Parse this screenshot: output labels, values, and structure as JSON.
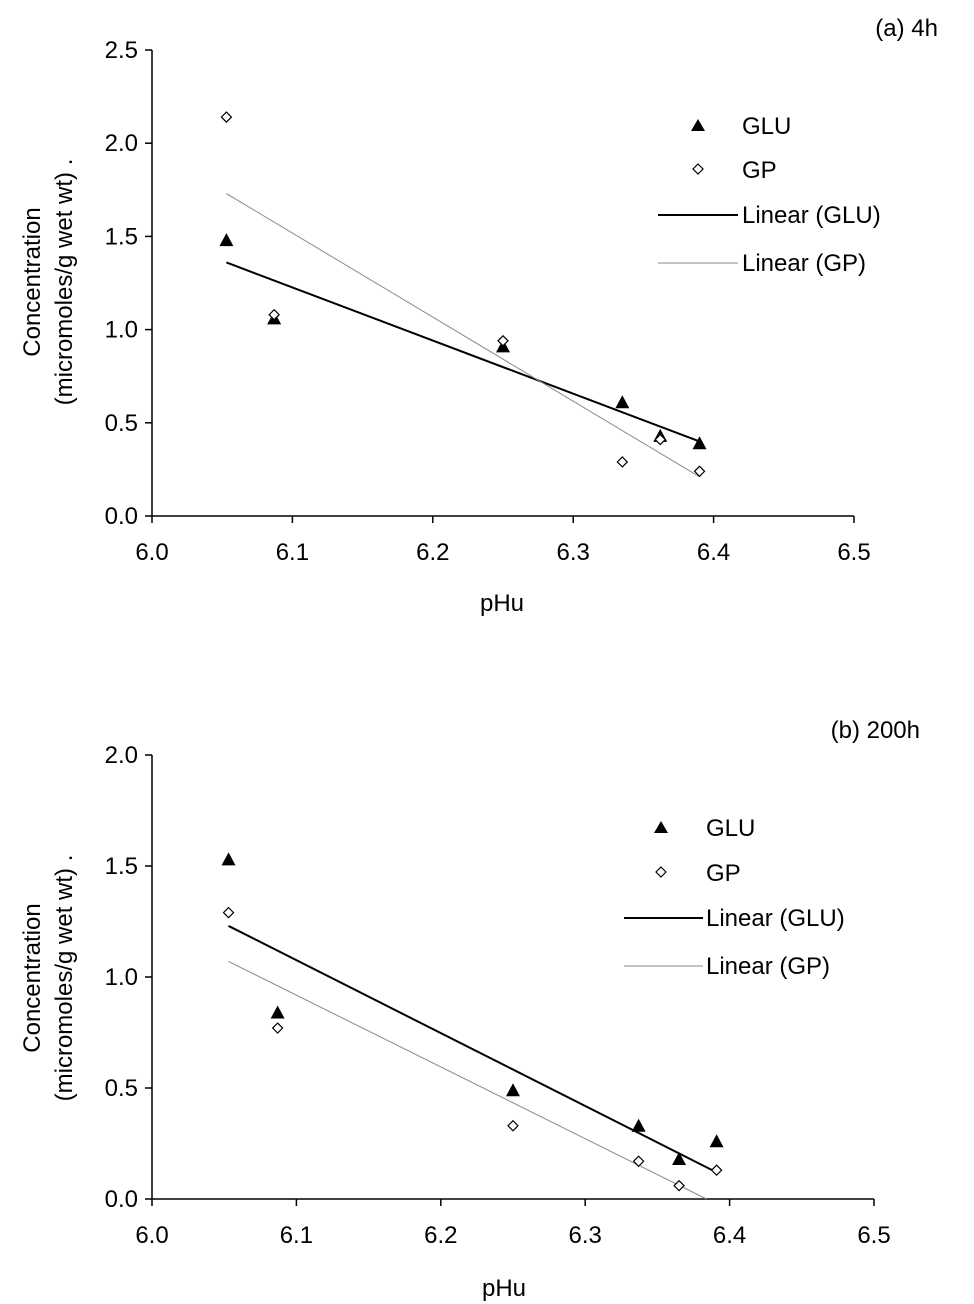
{
  "colors": {
    "axis": "#000000",
    "glu_marker": "#000000",
    "gp_marker": "#000000",
    "glu_line": "#000000",
    "gp_line": "#8a8a8a",
    "background": "#ffffff"
  },
  "chart_data": [
    {
      "type": "scatter",
      "panel_label": "(a) 4h",
      "xlabel": "pHu",
      "ylabel_line1": "Concentration",
      "ylabel_line2": "(micromoles/g wet wt) .",
      "xlim": [
        6.0,
        6.5
      ],
      "ylim": [
        0.0,
        2.5
      ],
      "x_ticks": [
        6.0,
        6.1,
        6.2,
        6.3,
        6.4,
        6.5
      ],
      "x_tick_labels": [
        "6.0",
        "6.1",
        "6.2",
        "6.3",
        "6.4",
        "6.5"
      ],
      "y_ticks": [
        0.0,
        0.5,
        1.0,
        1.5,
        2.0,
        2.5
      ],
      "y_tick_labels": [
        "0.0",
        "0.5",
        "1.0",
        "1.5",
        "2.0",
        "2.5"
      ],
      "grid": false,
      "legend_position": "top-right",
      "series": [
        {
          "name": "GLU",
          "marker": "filled-triangle",
          "x": [
            6.053,
            6.087,
            6.25,
            6.335,
            6.362,
            6.39
          ],
          "y": [
            1.48,
            1.06,
            0.91,
            0.61,
            0.43,
            0.39
          ]
        },
        {
          "name": "GP",
          "marker": "open-diamond",
          "x": [
            6.053,
            6.087,
            6.25,
            6.335,
            6.362,
            6.39
          ],
          "y": [
            2.14,
            1.08,
            0.94,
            0.29,
            0.41,
            0.24
          ]
        }
      ],
      "trendlines": [
        {
          "name": "Linear (GLU)",
          "x": [
            6.053,
            6.39
          ],
          "y": [
            1.36,
            0.4
          ]
        },
        {
          "name": "Linear (GP)",
          "x": [
            6.053,
            6.39
          ],
          "y": [
            1.73,
            0.21
          ]
        }
      ]
    },
    {
      "type": "scatter",
      "panel_label": "(b)  200h",
      "xlabel": "pHu",
      "ylabel_line1": "Concentration",
      "ylabel_line2": "(micromoles/g wet wt) .",
      "xlim": [
        6.0,
        6.5
      ],
      "ylim": [
        0.0,
        2.0
      ],
      "x_ticks": [
        6.0,
        6.1,
        6.2,
        6.3,
        6.4,
        6.5
      ],
      "x_tick_labels": [
        "6.0",
        "6.1",
        "6.2",
        "6.3",
        "6.4",
        "6.5"
      ],
      "y_ticks": [
        0.0,
        0.5,
        1.0,
        1.5,
        2.0
      ],
      "y_tick_labels": [
        "0.0",
        "0.5",
        "1.0",
        "1.5",
        "2.0"
      ],
      "grid": false,
      "legend_position": "top-right",
      "series": [
        {
          "name": "GLU",
          "marker": "filled-triangle",
          "x": [
            6.053,
            6.087,
            6.25,
            6.337,
            6.365,
            6.391
          ],
          "y": [
            1.53,
            0.84,
            0.49,
            0.33,
            0.18,
            0.26
          ]
        },
        {
          "name": "GP",
          "marker": "open-diamond",
          "x": [
            6.053,
            6.087,
            6.25,
            6.337,
            6.365,
            6.391
          ],
          "y": [
            1.29,
            0.77,
            0.33,
            0.17,
            0.06,
            0.13
          ]
        }
      ],
      "trendlines": [
        {
          "name": "Linear (GLU)",
          "x": [
            6.053,
            6.391
          ],
          "y": [
            1.23,
            0.12
          ]
        },
        {
          "name": "Linear (GP)",
          "x": [
            6.053,
            6.384
          ],
          "y": [
            1.07,
            0.0
          ]
        }
      ]
    }
  ]
}
